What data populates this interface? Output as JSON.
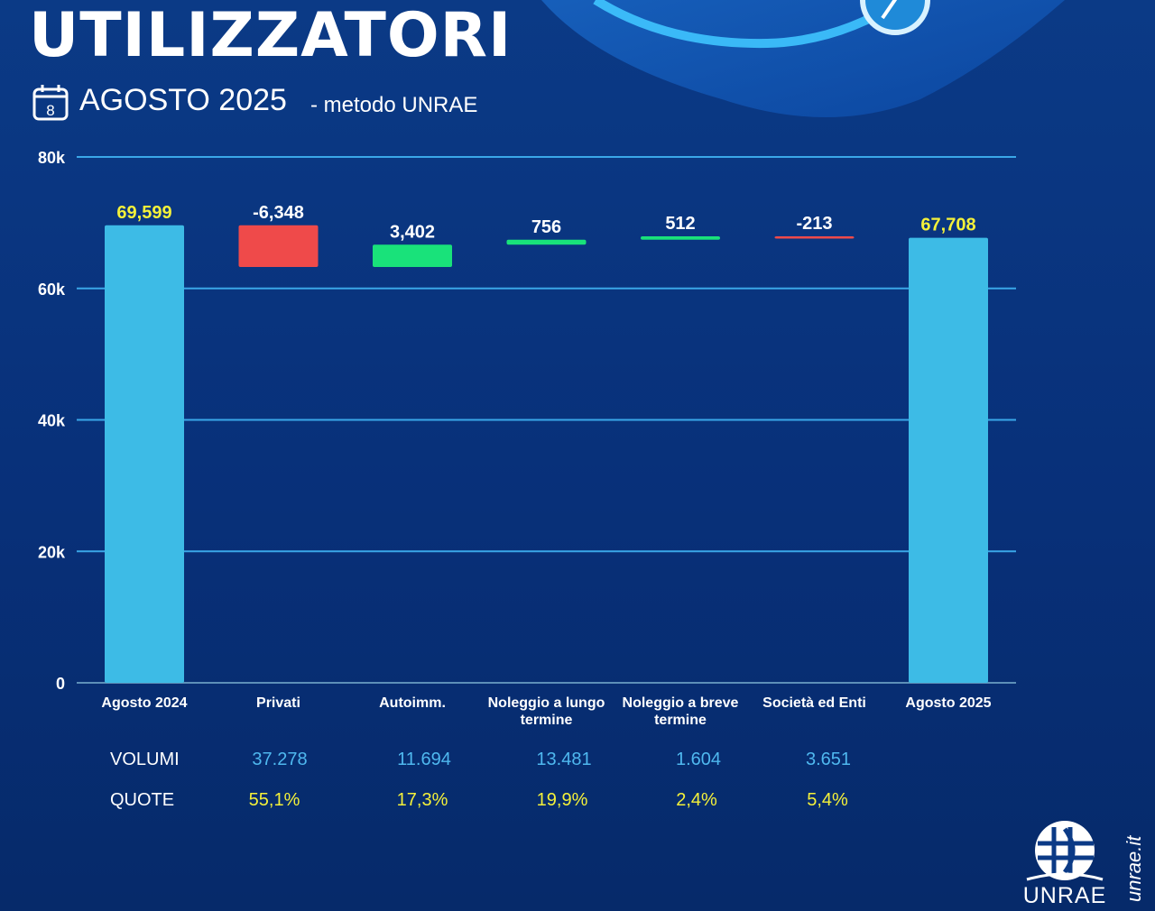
{
  "header": {
    "title": "UTILIZZATORI",
    "calendar_day": "8",
    "subtitle": "AGOSTO 2025",
    "method": "- metodo UNRAE"
  },
  "chart_data": {
    "type": "bar",
    "subtype": "waterfall",
    "categories": [
      "Agosto 2024",
      "Privati",
      "Autoimm.",
      "Noleggio a lungo termine",
      "Noleggio a breve termine",
      "Società ed Enti",
      "Agosto 2025"
    ],
    "values": [
      69599,
      -6348,
      3402,
      756,
      512,
      -213,
      67708
    ],
    "labels": [
      "69,599",
      "-6,348",
      "3,402",
      "756",
      "512",
      "-213",
      "67,708"
    ],
    "kinds": [
      "total",
      "delta",
      "delta",
      "delta",
      "delta",
      "delta",
      "total"
    ],
    "ylim": [
      0,
      80000
    ],
    "yticks": [
      0,
      20000,
      40000,
      60000,
      80000
    ],
    "ytick_labels": [
      "0",
      "20k",
      "40k",
      "60k",
      "80k"
    ],
    "grid": true,
    "colors": {
      "total": "#3dbbe6",
      "increase": "#19e27a",
      "decrease": "#ef4a4a",
      "total_label": "#f4f13a",
      "delta_label": "#ffffff",
      "grid": "#3aa7e8"
    }
  },
  "table": {
    "volumes_label": "VOLUMI",
    "shares_label": "QUOTE",
    "volumes": [
      "37.278",
      "11.694",
      "13.481",
      "1.604",
      "3.651"
    ],
    "shares": [
      "55,1%",
      "17,3%",
      "19,9%",
      "2,4%",
      "5,4%"
    ]
  },
  "footer": {
    "logo_text": "UNRAE",
    "logo_icon": "unrae-globe-icon",
    "site": "unrae.it"
  }
}
